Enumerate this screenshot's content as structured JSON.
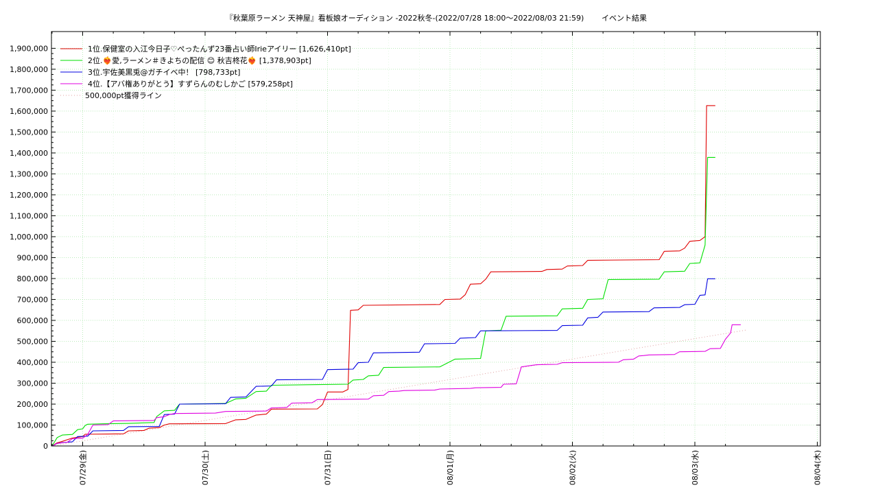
{
  "chart_data": {
    "type": "line",
    "title": "『秋葉原ラーメン 天神屋』看板娘オーディション -2022秋冬-(2022/07/28 18:00～2022/08/03 21:59)",
    "title_suffix": "イベント結果",
    "xlabel": "",
    "ylabel": "",
    "x_tick_labels": [
      "07/29(金)",
      "07/30(土)",
      "07/31(日)",
      "08/01(月)",
      "08/02(火)",
      "08/03(水)",
      "08/04(木)"
    ],
    "y_tick_labels": [
      "0",
      "100,000",
      "200,000",
      "300,000",
      "400,000",
      "500,000",
      "600,000",
      "700,000",
      "800,000",
      "900,000",
      "1,000,000",
      "1,100,000",
      "1,200,000",
      "1,300,000",
      "1,400,000",
      "1,500,000",
      "1,600,000",
      "1,700,000",
      "1,800,000",
      "1,900,000"
    ],
    "xlim_hours_from_0729": [
      -6,
      96
    ],
    "ylim": [
      0,
      1980000
    ],
    "grid": true,
    "legend_position": "top-left",
    "series": [
      {
        "name": "1位.保健室の入江今日子♡ぺったんず23番占い師Irieアイリー [1,626,410pt]",
        "color": "#e00000",
        "points": [
          [
            -6,
            0
          ],
          [
            -5,
            15000
          ],
          [
            -4,
            22000
          ],
          [
            -2,
            38000
          ],
          [
            0,
            45000
          ],
          [
            0.5,
            56000
          ],
          [
            5,
            57000
          ],
          [
            8,
            58000
          ],
          [
            9,
            72000
          ],
          [
            12,
            74000
          ],
          [
            13,
            85000
          ],
          [
            15,
            88000
          ],
          [
            16,
            100000
          ],
          [
            17,
            106000
          ],
          [
            28,
            107000
          ],
          [
            30,
            125000
          ],
          [
            32,
            127000
          ],
          [
            34,
            148000
          ],
          [
            36,
            152000
          ],
          [
            37,
            176000
          ],
          [
            46,
            177000
          ],
          [
            47,
            198000
          ],
          [
            48,
            258000
          ],
          [
            51,
            258000
          ],
          [
            52,
            270000
          ],
          [
            52.5,
            648000
          ],
          [
            54,
            650000
          ],
          [
            55,
            672000
          ],
          [
            70,
            676000
          ],
          [
            71,
            700000
          ],
          [
            74,
            702000
          ],
          [
            75,
            723000
          ],
          [
            76,
            773000
          ],
          [
            78,
            775000
          ],
          [
            79,
            797000
          ],
          [
            80,
            832000
          ],
          [
            90,
            834000
          ],
          [
            91,
            843000
          ],
          [
            94,
            845000
          ],
          [
            95,
            860000
          ],
          [
            98,
            862000
          ],
          [
            99,
            887000
          ],
          [
            113,
            890000
          ],
          [
            114,
            930000
          ],
          [
            117,
            932000
          ],
          [
            118,
            945000
          ],
          [
            119,
            978000
          ],
          [
            121,
            982000
          ],
          [
            122,
            1000000
          ],
          [
            122.3,
            1626410
          ],
          [
            124,
            1626410
          ]
        ]
      },
      {
        "name": "2位.❤️‍🔥愛,ラーメン＃きよちの配信 😊 秋吉柊花❤️‍🔥 [1,378,903pt]",
        "color": "#00e000",
        "points": [
          [
            -6,
            0
          ],
          [
            -5,
            40000
          ],
          [
            -4,
            52000
          ],
          [
            -2,
            55000
          ],
          [
            -1,
            78000
          ],
          [
            0,
            82000
          ],
          [
            0.5,
            98000
          ],
          [
            1,
            104000
          ],
          [
            4,
            106000
          ],
          [
            9,
            108000
          ],
          [
            14,
            112000
          ],
          [
            14.5,
            140000
          ],
          [
            16,
            168000
          ],
          [
            18,
            170000
          ],
          [
            19,
            200000
          ],
          [
            28,
            203000
          ],
          [
            30,
            225000
          ],
          [
            32,
            228000
          ],
          [
            34,
            260000
          ],
          [
            36,
            262000
          ],
          [
            37,
            290000
          ],
          [
            46,
            293000
          ],
          [
            52,
            295000
          ],
          [
            53,
            315000
          ],
          [
            55,
            318000
          ],
          [
            56,
            335000
          ],
          [
            58,
            338000
          ],
          [
            59,
            375000
          ],
          [
            70,
            378000
          ],
          [
            73,
            415000
          ],
          [
            78,
            418000
          ],
          [
            79,
            550000
          ],
          [
            82,
            553000
          ],
          [
            83,
            620000
          ],
          [
            93,
            622000
          ],
          [
            94,
            655000
          ],
          [
            98,
            658000
          ],
          [
            99,
            700000
          ],
          [
            102,
            703000
          ],
          [
            103,
            795000
          ],
          [
            113,
            797000
          ],
          [
            114,
            832000
          ],
          [
            118,
            835000
          ],
          [
            119,
            872000
          ],
          [
            121,
            875000
          ],
          [
            122,
            960000
          ],
          [
            122.5,
            1378903
          ],
          [
            124,
            1378903
          ]
        ]
      },
      {
        "name": "3位.宇佐美黒兎@ガチイベ中！ [798,733pt]",
        "color": "#0000e0",
        "points": [
          [
            -6,
            0
          ],
          [
            -5,
            12000
          ],
          [
            -4,
            16000
          ],
          [
            -2,
            20000
          ],
          [
            -1,
            45000
          ],
          [
            1,
            47000
          ],
          [
            2,
            72000
          ],
          [
            8,
            74000
          ],
          [
            9,
            92000
          ],
          [
            15,
            93000
          ],
          [
            16,
            150000
          ],
          [
            18,
            152000
          ],
          [
            19,
            200000
          ],
          [
            28,
            202000
          ],
          [
            29,
            232000
          ],
          [
            32,
            234000
          ],
          [
            34,
            285000
          ],
          [
            37,
            287000
          ],
          [
            38,
            316000
          ],
          [
            47,
            318000
          ],
          [
            48,
            365000
          ],
          [
            53,
            367000
          ],
          [
            54,
            398000
          ],
          [
            56,
            400000
          ],
          [
            57,
            445000
          ],
          [
            66,
            448000
          ],
          [
            67,
            488000
          ],
          [
            73,
            490000
          ],
          [
            74,
            515000
          ],
          [
            77,
            518000
          ],
          [
            78,
            550000
          ],
          [
            93,
            552000
          ],
          [
            94,
            575000
          ],
          [
            98,
            577000
          ],
          [
            99,
            612000
          ],
          [
            101,
            615000
          ],
          [
            102,
            640000
          ],
          [
            111,
            642000
          ],
          [
            112,
            660000
          ],
          [
            117,
            662000
          ],
          [
            118,
            675000
          ],
          [
            120,
            677000
          ],
          [
            121,
            720000
          ],
          [
            122,
            722000
          ],
          [
            122.5,
            798733
          ],
          [
            124,
            798733
          ]
        ]
      },
      {
        "name": "4位.【アバ権ありがとう】すずらんのむしかご [579,258pt]",
        "color": "#e000e0",
        "points": [
          [
            -6,
            0
          ],
          [
            -5,
            12000
          ],
          [
            -3,
            18000
          ],
          [
            -2,
            35000
          ],
          [
            0,
            37000
          ],
          [
            1,
            55000
          ],
          [
            2,
            100000
          ],
          [
            5,
            102000
          ],
          [
            6,
            120000
          ],
          [
            14,
            122000
          ],
          [
            14.5,
            135000
          ],
          [
            16,
            140000
          ],
          [
            17,
            150000
          ],
          [
            18,
            155000
          ],
          [
            26,
            157000
          ],
          [
            28,
            165000
          ],
          [
            36,
            167000
          ],
          [
            37,
            182000
          ],
          [
            40,
            184000
          ],
          [
            41,
            205000
          ],
          [
            45,
            207000
          ],
          [
            46,
            222000
          ],
          [
            56,
            224000
          ],
          [
            57,
            240000
          ],
          [
            59,
            242000
          ],
          [
            60,
            260000
          ],
          [
            62,
            262000
          ],
          [
            63,
            265000
          ],
          [
            69,
            267000
          ],
          [
            70,
            272000
          ],
          [
            76,
            275000
          ],
          [
            77,
            278000
          ],
          [
            82,
            280000
          ],
          [
            82.5,
            295000
          ],
          [
            85,
            297000
          ],
          [
            86,
            378000
          ],
          [
            88,
            385000
          ],
          [
            89,
            388000
          ],
          [
            93,
            390000
          ],
          [
            94,
            398000
          ],
          [
            105,
            400000
          ],
          [
            106,
            412000
          ],
          [
            108,
            415000
          ],
          [
            109,
            430000
          ],
          [
            110,
            432000
          ],
          [
            111,
            435000
          ],
          [
            116,
            437000
          ],
          [
            117,
            450000
          ],
          [
            122,
            452000
          ],
          [
            123,
            465000
          ],
          [
            125,
            466000
          ],
          [
            126,
            510000
          ],
          [
            127,
            540000
          ],
          [
            127.3,
            579258
          ],
          [
            129,
            579258
          ]
        ]
      },
      {
        "name": "500,000pt獲得ライン",
        "color": "#e0a0a0",
        "style": "dotted",
        "points": [
          [
            -6,
            0
          ],
          [
            130,
            500000
          ]
        ]
      }
    ]
  }
}
